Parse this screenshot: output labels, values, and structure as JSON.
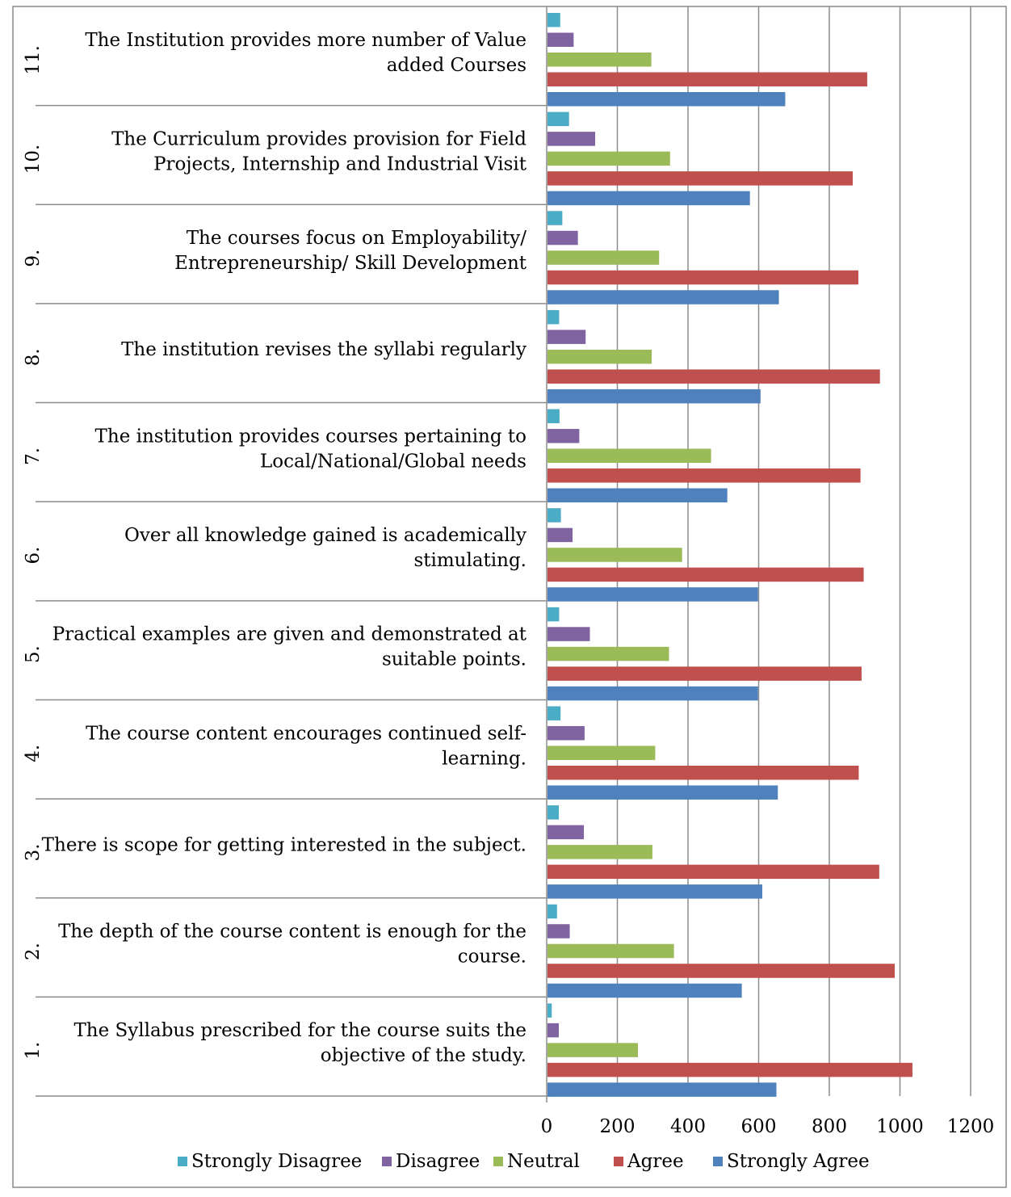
{
  "chart_data": {
    "type": "bar",
    "orientation": "horizontal",
    "categories": [
      {
        "num": "1.",
        "label": "The Syllabus prescribed for the course suits the objective of the study."
      },
      {
        "num": "2.",
        "label": "The depth of the course content is enough for the course."
      },
      {
        "num": "3.",
        "label": "There is scope for getting interested in the subject."
      },
      {
        "num": "4.",
        "label": "The course content encourages continued self-learning."
      },
      {
        "num": "5.",
        "label": "Practical examples are given and demonstrated at suitable points."
      },
      {
        "num": "6.",
        "label": "Over all knowledge gained is academically stimulating."
      },
      {
        "num": "7.",
        "label": "The institution provides courses pertaining to Local/National/Global needs"
      },
      {
        "num": "8.",
        "label": "The institution revises the syllabi regularly"
      },
      {
        "num": "9.",
        "label": "The courses focus on Employability/ Entrepreneurship/ Skill Development"
      },
      {
        "num": "10.",
        "label": "The Curriculum provides provision for Field Projects, Internship and Industrial Visit"
      },
      {
        "num": "11.",
        "label": "The Institution provides more number of Value added Courses"
      }
    ],
    "category_label_lines": [
      [
        "The Syllabus prescribed for the course suits the",
        "objective of the study."
      ],
      [
        "The depth of the course content is enough for the",
        "course."
      ],
      [
        "There is scope for getting interested in the subject."
      ],
      [
        "The course content encourages continued self-",
        "learning."
      ],
      [
        "Practical examples are given and demonstrated at",
        "suitable points."
      ],
      [
        "Over all knowledge gained is academically",
        "stimulating."
      ],
      [
        "The institution provides courses pertaining to",
        "Local/National/Global needs"
      ],
      [
        "The institution revises the syllabi regularly"
      ],
      [
        "The courses focus on Employability/",
        "Entrepreneurship/ Skill Development"
      ],
      [
        "The Curriculum provides provision for Field",
        "Projects, Internship and Industrial Visit"
      ],
      [
        "The Institution provides more number of Value",
        "added Courses"
      ]
    ],
    "series": [
      {
        "name": "Strongly Disagree",
        "color": "#4BACC6",
        "values": [
          12,
          27,
          32,
          37,
          33,
          38,
          34,
          33,
          42,
          61,
          36
        ]
      },
      {
        "name": "Disagree",
        "color": "#8064A2",
        "values": [
          32,
          63,
          103,
          105,
          120,
          71,
          90,
          108,
          86,
          135,
          74
        ]
      },
      {
        "name": "Neutral",
        "color": "#9BBB59",
        "values": [
          256,
          358,
          297,
          305,
          344,
          381,
          463,
          295,
          316,
          347,
          294
        ]
      },
      {
        "name": "Agree",
        "color": "#C0504D",
        "values": [
          1033,
          983,
          939,
          881,
          889,
          895,
          886,
          941,
          880,
          864,
          905
        ]
      },
      {
        "name": "Strongly Agree",
        "color": "#4F81BD",
        "values": [
          648,
          550,
          608,
          652,
          596,
          596,
          509,
          603,
          655,
          573,
          673
        ]
      }
    ],
    "x_ticks": [
      0,
      200,
      400,
      600,
      800,
      1000,
      1200
    ],
    "xlim": [
      0,
      1200
    ],
    "grid": true,
    "legend_position": "bottom",
    "title": "",
    "xlabel": "",
    "ylabel": ""
  }
}
